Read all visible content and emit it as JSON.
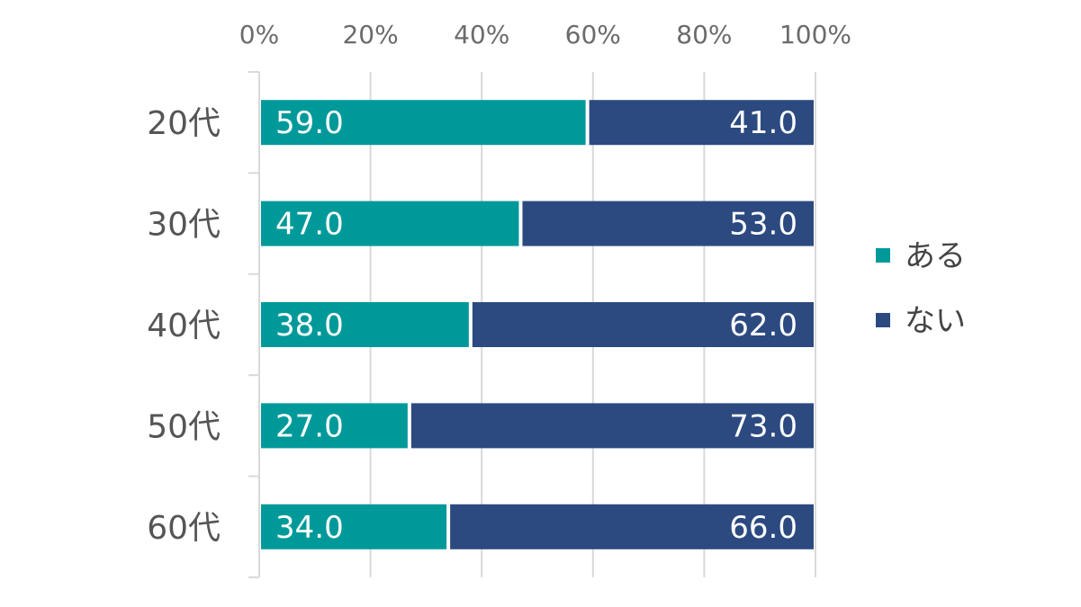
{
  "chart_data": {
    "type": "bar",
    "orientation": "horizontal",
    "stacked": true,
    "percent": true,
    "categories": [
      "20代",
      "30代",
      "40代",
      "50代",
      "60代"
    ],
    "series": [
      {
        "name": "ある",
        "color": "#00999a",
        "values": [
          59.0,
          47.0,
          38.0,
          27.0,
          34.0
        ]
      },
      {
        "name": "ない",
        "color": "#2c4a80",
        "values": [
          41.0,
          53.0,
          62.0,
          73.0,
          66.0
        ]
      }
    ],
    "xlim": [
      0,
      100
    ],
    "x_ticks": [
      "0%",
      "20%",
      "40%",
      "60%",
      "80%",
      "100%"
    ],
    "x_axis_position": "top",
    "grid": true,
    "legend_position": "right",
    "title": "",
    "xlabel": "",
    "ylabel": ""
  }
}
